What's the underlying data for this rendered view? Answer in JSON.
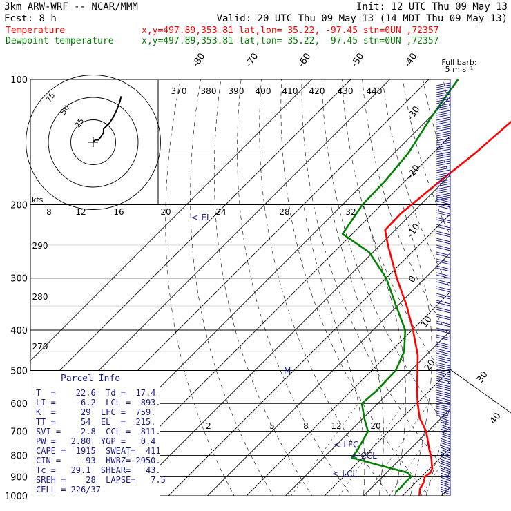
{
  "header": {
    "model": "3km ARW-WRF -- NCAR/MMM",
    "init": "Init: 12 UTC Thu 09 May 13",
    "fcst": "Fcst:    8 h",
    "valid": "Valid: 20 UTC Thu 09 May 13 (14 MDT Thu 09 May 13)"
  },
  "legend": [
    {
      "name": "Temperature",
      "info": "x,y=497.89,353.81   lat,lon= 35.22, -97.45  stn=0UN ,72357",
      "color": "#ff0000"
    },
    {
      "name": "Dewpoint temperature",
      "info": "x,y=497.89,353.81   lat,lon= 35.22, -97.45  stn=0UN ,72357",
      "color": "#008000"
    }
  ],
  "barb_legend": {
    "line1": "Full barb:",
    "line2": "5 m s⁻¹"
  },
  "parcel": {
    "title": "Parcel Info",
    "rows": [
      "T  =    22.6  Td =  17.4",
      "LI =    -6.2  LCL =  893.",
      "K  =     29  LFC =  759.",
      "TT =     54  EL  =  215.",
      "SVI =   -2.8  CCL =  811.",
      "PW =   2.80  YGP =   0.4",
      "CAPE =  1915  SWEAT=  411",
      "CIN =    -93  HWBZ= 2950.",
      "Tc =   29.1  SHEAR=   43.",
      "SREH =    28  LAPSE=   7.5",
      "CELL = 226/37"
    ]
  },
  "hodograph": {
    "speed_unit": "kts",
    "ring_labels": [
      "25",
      "50",
      "75"
    ],
    "speed_ticks": [
      "8",
      "12",
      "16",
      "20",
      "24",
      "28",
      "32"
    ]
  },
  "chart_data": {
    "type": "line",
    "title": "",
    "xlabel": "",
    "ylabel": "",
    "pressure_levels": [
      "100",
      "200",
      "300",
      "400",
      "500",
      "600",
      "700",
      "800",
      "900",
      "1000"
    ],
    "isotherm_labels": [
      "-80",
      "-70",
      "-60",
      "-50",
      "-40",
      "-30",
      "-20",
      "-10",
      "0",
      "10",
      "20",
      "30",
      "40"
    ],
    "theta_labels": [
      "370",
      "380",
      "390",
      "400",
      "410",
      "420",
      "430",
      "440"
    ],
    "theta_left_labels": [
      "290",
      "280",
      "270"
    ],
    "mixing_ratio_labels": [
      "2",
      "5",
      "8",
      "12",
      "20"
    ],
    "markers": [
      "<-EL",
      "<-LFC",
      "<-CCL",
      "<-LCL",
      "M"
    ],
    "series": [
      {
        "name": "Temperature",
        "color": "#ff0000",
        "points": [
          [
            1000,
            24.3
          ],
          [
            960,
            22.6
          ],
          [
            930,
            22.0
          ],
          [
            900,
            20.8
          ],
          [
            880,
            21.2
          ],
          [
            860,
            20.6
          ],
          [
            840,
            19.4
          ],
          [
            810,
            17.6
          ],
          [
            780,
            15.4
          ],
          [
            700,
            9.5
          ],
          [
            650,
            4.4
          ],
          [
            600,
            0.2
          ],
          [
            560,
            -3.2
          ],
          [
            500,
            -8.3
          ],
          [
            460,
            -12.1
          ],
          [
            400,
            -19.8
          ],
          [
            350,
            -27.6
          ],
          [
            300,
            -37.3
          ],
          [
            250,
            -48.0
          ],
          [
            230,
            -52.6
          ],
          [
            210,
            -52.8
          ],
          [
            175,
            -51.0
          ],
          [
            150,
            -49.2
          ],
          [
            125,
            -48.0
          ],
          [
            100,
            -47.3
          ]
        ]
      },
      {
        "name": "Dewpoint temperature",
        "color": "#008000",
        "points": [
          [
            980,
            17.3
          ],
          [
            950,
            17.4
          ],
          [
            920,
            17.2
          ],
          [
            900,
            17.3
          ],
          [
            880,
            15.4
          ],
          [
            850,
            7.6
          ],
          [
            810,
            -2.8
          ],
          [
            780,
            -3.2
          ],
          [
            700,
            -5.4
          ],
          [
            650,
            -9.8
          ],
          [
            600,
            -14.1
          ],
          [
            560,
            -13.6
          ],
          [
            500,
            -13.9
          ],
          [
            450,
            -16.6
          ],
          [
            400,
            -21.8
          ],
          [
            350,
            -30.3
          ],
          [
            300,
            -40.0
          ],
          [
            260,
            -51.0
          ],
          [
            235,
            -62.5
          ],
          [
            200,
            -64.9
          ],
          [
            175,
            -65.2
          ],
          [
            150,
            -66.4
          ],
          [
            125,
            -69.5
          ],
          [
            100,
            -72.5
          ]
        ]
      }
    ],
    "hodograph_trace": [
      [
        0,
        0
      ],
      [
        2,
        2
      ],
      [
        5,
        2
      ],
      [
        7,
        4
      ],
      [
        10,
        8
      ],
      [
        10,
        11
      ],
      [
        15,
        15
      ],
      [
        19,
        20
      ],
      [
        23,
        27
      ],
      [
        26,
        34
      ],
      [
        27,
        38
      ]
    ]
  }
}
